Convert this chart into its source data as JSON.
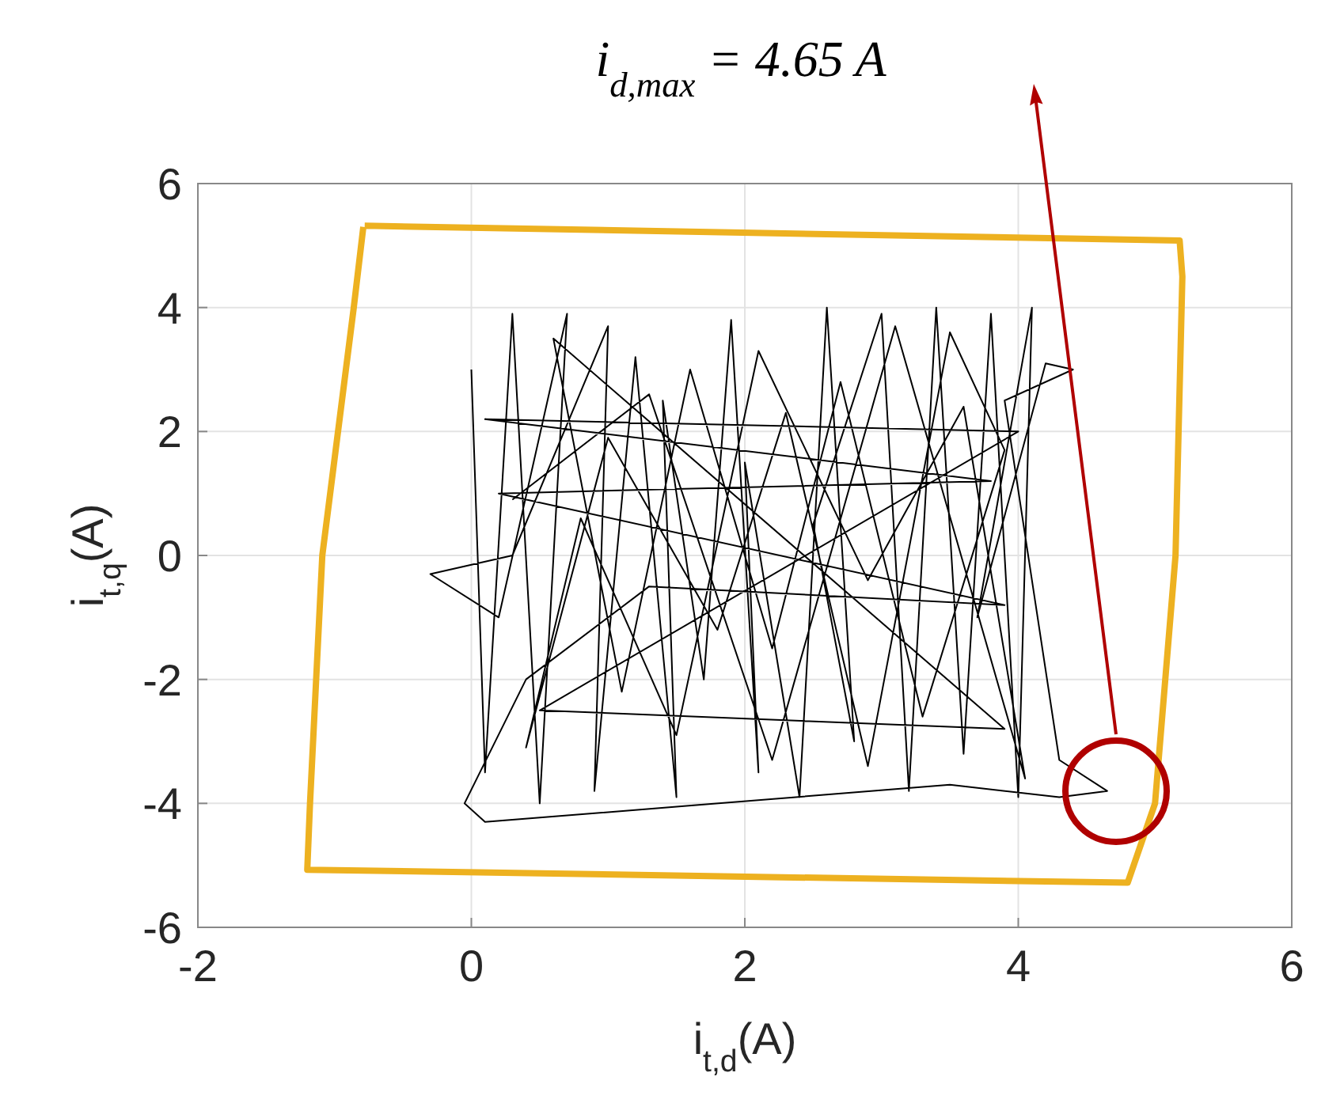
{
  "chart_data": {
    "type": "line",
    "xlabel": "i$_{t,d}$(A)",
    "ylabel": "i$_{t,q}$(A)",
    "xlim": [
      -2,
      6
    ],
    "xticks": [
      -2,
      0,
      2,
      4,
      6
    ],
    "ylim": [
      -6,
      6
    ],
    "yticks": [
      -6,
      -4,
      -2,
      0,
      2,
      4,
      6
    ],
    "grid": true,
    "annotations": [
      "i$_{d,max}$ = 4.65 A"
    ],
    "series": [
      {
        "color": "#edb120",
        "x": [
          -0.78,
          5.18,
          5.2,
          5.15,
          5.0,
          4.8,
          -1.2,
          -1.18,
          -1.09,
          -0.86,
          -0.79
        ],
        "values": [
          5.32,
          5.08,
          4.5,
          0,
          -4,
          -5.28,
          -5.07,
          -4,
          0,
          4,
          5.3
        ]
      },
      {
        "color": "#000000",
        "x": [
          0.0,
          0.1,
          0.3,
          0.5,
          0.7,
          0.2,
          -0.3,
          0.3,
          1.0,
          0.9,
          1.2,
          1.5,
          1.4,
          1.7,
          1.9,
          2.1,
          2.0,
          2.4,
          2.6,
          2.8,
          2.5,
          3.0,
          3.2,
          3.4,
          3.6,
          3.8,
          4.0,
          4.1,
          3.7,
          4.2,
          4.4,
          3.9,
          4.3,
          4.65,
          4.3,
          3.5,
          0.1,
          -0.05,
          0.4,
          1.3,
          3.9,
          0.2,
          3.8,
          0.1,
          4.0,
          0.5,
          3.9,
          0.6,
          1.1,
          1.6,
          2.2,
          2.7,
          3.3,
          3.9,
          3.5,
          2.9,
          2.3,
          1.8,
          1.0,
          0.4,
          0.8,
          1.5,
          2.1,
          2.9,
          3.6,
          4.05,
          3.1,
          2.2,
          1.3,
          0.3
        ],
        "values": [
          3.0,
          -3.5,
          3.9,
          -4.0,
          3.9,
          -1.0,
          -0.3,
          0.0,
          3.7,
          -3.8,
          3.2,
          -3.9,
          2.5,
          -2.0,
          3.8,
          -3.5,
          1.5,
          -3.9,
          4.0,
          -3.0,
          0.5,
          3.9,
          -3.8,
          4.0,
          -3.2,
          3.9,
          -3.9,
          4.0,
          -1.0,
          3.1,
          3.0,
          2.5,
          -3.3,
          -3.8,
          -3.9,
          -3.7,
          -4.3,
          -4.0,
          -2.0,
          -0.5,
          -0.8,
          1.0,
          1.2,
          2.2,
          2.0,
          -2.5,
          -2.8,
          3.5,
          -2.2,
          3.0,
          -1.5,
          2.8,
          -2.6,
          1.7,
          3.6,
          -3.4,
          2.3,
          -1.2,
          1.9,
          -3.1,
          0.6,
          -2.9,
          3.3,
          -0.4,
          2.4,
          -3.6,
          3.7,
          -3.3,
          2.6,
          0.9
        ]
      }
    ]
  }
}
